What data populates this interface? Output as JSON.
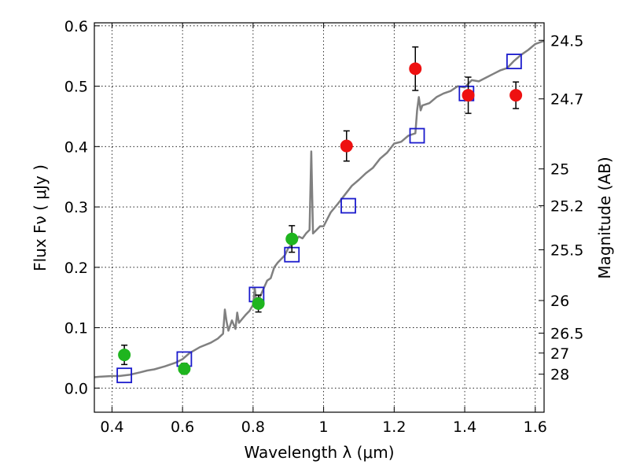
{
  "chart_data": {
    "type": "scatter",
    "xlabel": "Wavelength  λ (μm)",
    "ylabel": "Flux  Fν  ( μJy )",
    "y2label": "Magnitude (AB)",
    "xlim": [
      0.35,
      1.625
    ],
    "ylim": [
      -0.04,
      0.605
    ],
    "grid": true,
    "x_ticks": [
      0.4,
      0.6,
      0.8,
      1.0,
      1.2,
      1.4,
      1.6
    ],
    "x_tick_labels": [
      "0.4",
      "0.6",
      "0.8",
      "1",
      "1.2",
      "1.4",
      "1.6"
    ],
    "y_ticks": [
      0.0,
      0.1,
      0.2,
      0.3,
      0.4,
      0.5,
      0.6
    ],
    "y_tick_labels": [
      "0.0",
      "0.1",
      "0.2",
      "0.3",
      "0.4",
      "0.5",
      "0.6"
    ],
    "y2_ticks": [
      {
        "label": "24.5",
        "flux": 0.576
      },
      {
        "label": "24.7",
        "flux": 0.479
      },
      {
        "label": "25",
        "flux": 0.363
      },
      {
        "label": "25.2",
        "flux": 0.302
      },
      {
        "label": "25.5",
        "flux": 0.229
      },
      {
        "label": "26",
        "flux": 0.145
      },
      {
        "label": "26.5",
        "flux": 0.091
      },
      {
        "label": "27",
        "flux": 0.058
      },
      {
        "label": "28",
        "flux": 0.023
      }
    ],
    "colors": {
      "spectrum": "#808080",
      "green": "#1fb51f",
      "red": "#ee1111",
      "model": "#1a1acc"
    },
    "series": [
      {
        "marker": "line",
        "color": "#808080",
        "x": [
          0.35,
          0.37,
          0.4,
          0.42,
          0.45,
          0.48,
          0.5,
          0.52,
          0.55,
          0.58,
          0.6,
          0.62,
          0.65,
          0.68,
          0.7,
          0.715,
          0.72,
          0.725,
          0.73,
          0.74,
          0.75,
          0.755,
          0.76,
          0.77,
          0.78,
          0.79,
          0.8,
          0.805,
          0.81,
          0.82,
          0.83,
          0.84,
          0.85,
          0.86,
          0.87,
          0.88,
          0.89,
          0.9,
          0.91,
          0.92,
          0.93,
          0.94,
          0.95,
          0.96,
          0.965,
          0.97,
          0.98,
          0.99,
          1.0,
          1.02,
          1.04,
          1.06,
          1.08,
          1.1,
          1.12,
          1.14,
          1.16,
          1.18,
          1.2,
          1.22,
          1.24,
          1.26,
          1.265,
          1.27,
          1.275,
          1.28,
          1.3,
          1.32,
          1.34,
          1.36,
          1.38,
          1.4,
          1.42,
          1.44,
          1.46,
          1.48,
          1.5,
          1.52,
          1.54,
          1.56,
          1.58,
          1.6,
          1.625
        ],
        "y": [
          0.018,
          0.019,
          0.02,
          0.02,
          0.022,
          0.026,
          0.029,
          0.031,
          0.036,
          0.042,
          0.048,
          0.058,
          0.068,
          0.075,
          0.082,
          0.09,
          0.13,
          0.11,
          0.095,
          0.112,
          0.098,
          0.125,
          0.108,
          0.115,
          0.122,
          0.128,
          0.138,
          0.165,
          0.14,
          0.152,
          0.165,
          0.178,
          0.182,
          0.2,
          0.208,
          0.214,
          0.22,
          0.232,
          0.238,
          0.244,
          0.251,
          0.248,
          0.256,
          0.262,
          0.392,
          0.256,
          0.262,
          0.268,
          0.268,
          0.291,
          0.305,
          0.32,
          0.335,
          0.345,
          0.356,
          0.365,
          0.38,
          0.39,
          0.405,
          0.408,
          0.418,
          0.422,
          0.46,
          0.482,
          0.46,
          0.468,
          0.472,
          0.482,
          0.488,
          0.492,
          0.5,
          0.498,
          0.51,
          0.508,
          0.514,
          0.52,
          0.526,
          0.53,
          0.542,
          0.552,
          0.56,
          0.57,
          0.575
        ]
      },
      {
        "marker": "circle",
        "color": "#1fb51f",
        "x": [
          0.435,
          0.605,
          0.815,
          0.91
        ],
        "y": [
          0.055,
          0.032,
          0.14,
          0.247
        ],
        "err": [
          0.016,
          0.009,
          0.014,
          0.022
        ]
      },
      {
        "marker": "circle",
        "color": "#ee1111",
        "x": [
          1.065,
          1.26,
          1.41,
          1.545
        ],
        "y": [
          0.401,
          0.529,
          0.485,
          0.485
        ],
        "err": [
          0.025,
          0.036,
          0.03,
          0.022
        ]
      },
      {
        "marker": "square",
        "color": "#1a1acc",
        "x": [
          0.435,
          0.605,
          0.81,
          0.91,
          1.07,
          1.265,
          1.405,
          1.54
        ],
        "y": [
          0.021,
          0.048,
          0.155,
          0.221,
          0.302,
          0.418,
          0.488,
          0.541
        ]
      }
    ]
  }
}
